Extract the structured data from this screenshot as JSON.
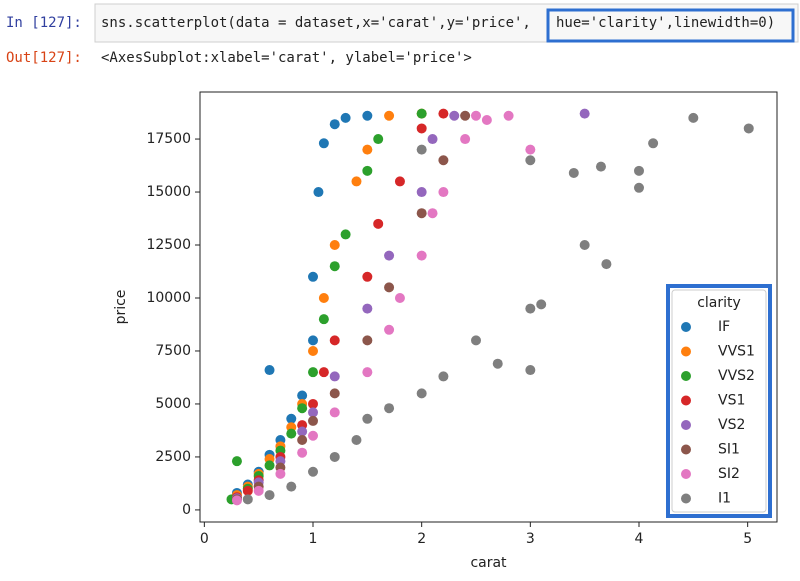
{
  "cell": {
    "in_prompt": "In [127]:",
    "code_parts": [
      "sns.scatterplot(data = dataset,x='carat',y='price',",
      "hue='clarity',linewidth=0)"
    ],
    "out_prompt": "Out[127]:",
    "output": "<AxesSubplot:xlabel='carat', ylabel='price'>"
  },
  "chart_data": {
    "type": "scatter",
    "xlabel": "carat",
    "ylabel": "price",
    "xlim": [
      -0.04,
      5.27
    ],
    "ylim": [
      -570,
      19720
    ],
    "xticks": [
      0,
      1,
      2,
      3,
      4,
      5
    ],
    "yticks": [
      0,
      2500,
      5000,
      7500,
      10000,
      12500,
      15000,
      17500
    ],
    "legend_title": "clarity",
    "legend": "lower right",
    "series": [
      {
        "name": "IF",
        "color": "#1f77b4",
        "x": [
          0.3,
          0.4,
          0.5,
          0.6,
          0.6,
          0.7,
          0.8,
          0.9,
          1.0,
          1.0,
          1.05,
          1.1,
          1.2,
          1.3,
          1.5
        ],
        "values": [
          800,
          1200,
          1800,
          2600,
          6600,
          3300,
          4300,
          5400,
          8000,
          11000,
          15000,
          17300,
          18200,
          18500,
          18600
        ]
      },
      {
        "name": "VVS1",
        "color": "#ff7f0e",
        "x": [
          0.3,
          0.4,
          0.5,
          0.6,
          0.7,
          0.8,
          0.9,
          1.0,
          1.1,
          1.2,
          1.4,
          1.5,
          1.7,
          2.0
        ],
        "values": [
          700,
          1100,
          1700,
          2400,
          3000,
          3900,
          5000,
          7500,
          10000,
          12500,
          15500,
          17000,
          18600,
          18700
        ]
      },
      {
        "name": "VVS2",
        "color": "#2ca02c",
        "x": [
          0.25,
          0.3,
          0.4,
          0.5,
          0.6,
          0.7,
          0.8,
          0.9,
          1.0,
          1.1,
          1.2,
          1.3,
          1.5,
          1.6,
          2.0
        ],
        "values": [
          500,
          2300,
          1000,
          1600,
          2100,
          2800,
          3600,
          4800,
          6500,
          9000,
          11500,
          13000,
          16000,
          17500,
          18700
        ]
      },
      {
        "name": "VS1",
        "color": "#d62728",
        "x": [
          0.3,
          0.4,
          0.5,
          0.7,
          0.9,
          1.0,
          1.1,
          1.2,
          1.5,
          1.6,
          1.8,
          2.0,
          2.2
        ],
        "values": [
          600,
          900,
          1400,
          2500,
          4000,
          5000,
          6500,
          8000,
          11000,
          13500,
          15500,
          18000,
          18700
        ]
      },
      {
        "name": "VS2",
        "color": "#9467bd",
        "x": [
          0.3,
          0.5,
          0.7,
          0.9,
          1.0,
          1.2,
          1.5,
          1.7,
          2.0,
          2.1,
          2.3,
          3.5
        ],
        "values": [
          550,
          1300,
          2300,
          3700,
          4600,
          6300,
          9500,
          12000,
          15000,
          17500,
          18600,
          18700
        ]
      },
      {
        "name": "SI1",
        "color": "#8c564b",
        "x": [
          0.3,
          0.5,
          0.7,
          0.9,
          1.0,
          1.2,
          1.5,
          1.7,
          2.0,
          2.2,
          2.4
        ],
        "values": [
          500,
          1100,
          2000,
          3300,
          4200,
          5500,
          8000,
          10500,
          14000,
          16500,
          18600
        ]
      },
      {
        "name": "SI2",
        "color": "#e377c2",
        "x": [
          0.3,
          0.5,
          0.7,
          0.9,
          1.0,
          1.2,
          1.5,
          1.7,
          1.8,
          2.0,
          2.1,
          2.2,
          2.4,
          2.5,
          2.6,
          2.8,
          3.0
        ],
        "values": [
          450,
          900,
          1700,
          2700,
          3500,
          4600,
          6500,
          8500,
          10000,
          12000,
          14000,
          15000,
          17500,
          18600,
          18400,
          18600,
          17000
        ]
      },
      {
        "name": "I1",
        "color": "#7f7f7f",
        "x": [
          0.4,
          0.6,
          0.8,
          1.0,
          1.2,
          1.4,
          1.5,
          1.7,
          2.0,
          2.0,
          2.2,
          2.5,
          2.7,
          3.0,
          3.0,
          3.0,
          3.1,
          3.4,
          3.5,
          3.65,
          3.7,
          4.0,
          4.0,
          4.13,
          4.5,
          5.01
        ],
        "values": [
          500,
          700,
          1100,
          1800,
          2500,
          3300,
          4300,
          4800,
          5500,
          17000,
          6300,
          8000,
          6900,
          9500,
          16500,
          6600,
          9700,
          15900,
          12500,
          16200,
          11600,
          16000,
          15200,
          17300,
          18500,
          18000
        ]
      }
    ]
  }
}
